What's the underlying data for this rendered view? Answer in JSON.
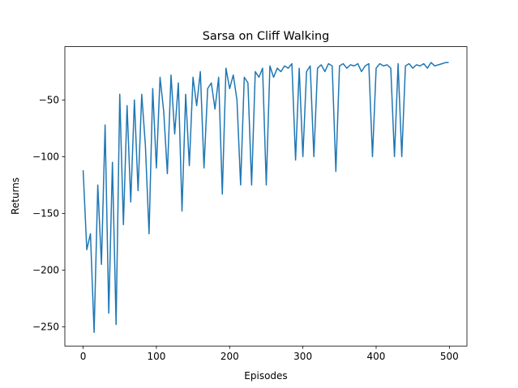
{
  "chart_data": {
    "type": "line",
    "title": "Sarsa on Cliff Walking",
    "x_label": "Episodes",
    "y_label": "Returns",
    "x": [
      0,
      5,
      10,
      15,
      20,
      25,
      30,
      35,
      40,
      45,
      50,
      55,
      60,
      65,
      70,
      75,
      80,
      85,
      90,
      95,
      100,
      105,
      110,
      115,
      120,
      125,
      130,
      135,
      140,
      145,
      150,
      155,
      160,
      165,
      170,
      175,
      180,
      185,
      190,
      195,
      200,
      205,
      210,
      215,
      220,
      225,
      230,
      235,
      240,
      245,
      250,
      255,
      260,
      265,
      270,
      275,
      280,
      285,
      290,
      295,
      300,
      305,
      310,
      315,
      320,
      325,
      330,
      335,
      340,
      345,
      350,
      355,
      360,
      365,
      370,
      375,
      380,
      385,
      390,
      395,
      400,
      405,
      410,
      415,
      420,
      425,
      430,
      435,
      440,
      445,
      450,
      455,
      460,
      465,
      470,
      475,
      480,
      485,
      490,
      495,
      499
    ],
    "series": [
      {
        "name": "Returns",
        "color": "#1f77b4",
        "values": [
          -112,
          -182,
          -168,
          -255,
          -125,
          -195,
          -72,
          -238,
          -105,
          -248,
          -45,
          -160,
          -55,
          -140,
          -50,
          -130,
          -45,
          -90,
          -168,
          -40,
          -110,
          -30,
          -60,
          -115,
          -28,
          -80,
          -35,
          -148,
          -45,
          -108,
          -30,
          -55,
          -25,
          -110,
          -40,
          -35,
          -58,
          -30,
          -133,
          -22,
          -40,
          -28,
          -50,
          -125,
          -30,
          -35,
          -125,
          -25,
          -30,
          -22,
          -125,
          -20,
          -30,
          -22,
          -25,
          -20,
          -22,
          -18,
          -103,
          -22,
          -100,
          -25,
          -20,
          -100,
          -22,
          -19,
          -25,
          -18,
          -20,
          -113,
          -20,
          -18,
          -22,
          -19,
          -20,
          -18,
          -25,
          -20,
          -18,
          -100,
          -22,
          -18,
          -20,
          -19,
          -22,
          -100,
          -18,
          -100,
          -20,
          -18,
          -22,
          -19,
          -20,
          -18,
          -22,
          -17,
          -20,
          -19,
          -18,
          -17,
          -17
        ]
      }
    ],
    "xlim": [
      -24.95,
      523.95
    ],
    "ylim": [
      -267,
      -3
    ],
    "xticks": [
      0,
      100,
      200,
      300,
      400,
      500
    ],
    "yticks": [
      {
        "value": -250,
        "label": "−250"
      },
      {
        "value": -200,
        "label": "−200"
      },
      {
        "value": -150,
        "label": "−150"
      },
      {
        "value": -100,
        "label": "−100"
      },
      {
        "value": -50,
        "label": "−50"
      }
    ]
  }
}
